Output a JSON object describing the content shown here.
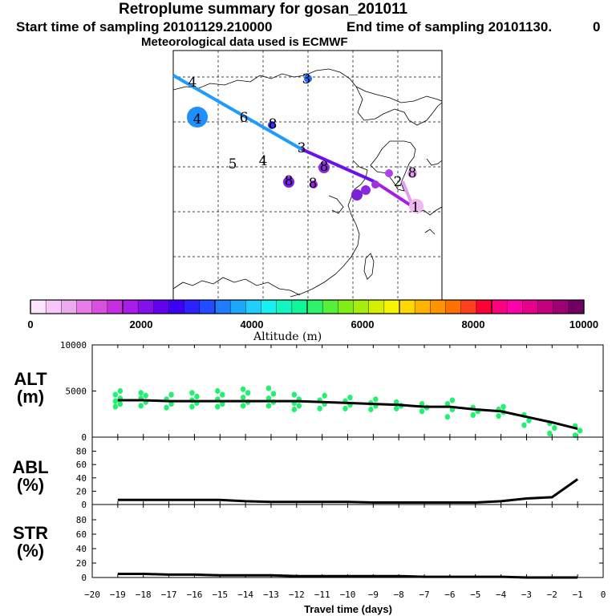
{
  "header": {
    "title": "Retroplume summary for gosan_201011",
    "start": "Start time of sampling 20101129.210000",
    "end": "End time of sampling 20101130.",
    "end_suffix": "0",
    "met": "Meteorological data used is ECMWF"
  },
  "colorbar": {
    "colors": [
      "#ffe6ff",
      "#f7c8f7",
      "#eeaaf0",
      "#e67de9",
      "#d94fe0",
      "#c52ee0",
      "#a81be8",
      "#8510ec",
      "#6000ef",
      "#3c00f2",
      "#2a23ff",
      "#1f4dff",
      "#1e7cff",
      "#1ea6ff",
      "#1ecfff",
      "#18f0f0",
      "#14f5c0",
      "#10f595",
      "#2ef36a",
      "#55f03c",
      "#80ec18",
      "#a8ec0a",
      "#d2f000",
      "#f7f400",
      "#ffd800",
      "#ffb400",
      "#ff9400",
      "#ff7000",
      "#ff4020",
      "#ff0033",
      "#ff0080",
      "#ff00aa",
      "#e6008c",
      "#c4007c",
      "#9e0078",
      "#700060"
    ],
    "ticks": [
      "0",
      "2000",
      "4000",
      "6000",
      "8000",
      "10000"
    ],
    "label": "Altitude (m)"
  },
  "map_labels": [
    {
      "t": "4",
      "c": "#000000"
    },
    {
      "t": "3",
      "c": "#1a3cff"
    },
    {
      "t": "4",
      "c": "#1a8cff"
    },
    {
      "t": "6",
      "c": "#000000"
    },
    {
      "t": "8",
      "c": "#3c2dff"
    },
    {
      "t": "3",
      "c": "#000000"
    },
    {
      "t": "5",
      "c": "#1a3cff"
    },
    {
      "t": "4",
      "c": "#3c2dff"
    },
    {
      "t": "8",
      "c": "#8a2be2"
    },
    {
      "t": "8",
      "c": "#8a2be2"
    },
    {
      "t": "8",
      "c": "#c62ee8"
    },
    {
      "t": "2",
      "c": "#000000"
    },
    {
      "t": "8",
      "c": "#e6a0f0"
    },
    {
      "t": "1",
      "c": "#000000"
    }
  ],
  "chart_data": [
    {
      "type": "line",
      "name": "ALT",
      "ylabel_line1": "ALT",
      "ylabel_line2": "(m)",
      "xlim": [
        -20,
        0
      ],
      "ylim": [
        0,
        10000
      ],
      "yticks": [
        "0",
        "5000",
        "10000"
      ],
      "x": [
        -19,
        -18,
        -17,
        -16,
        -15,
        -14,
        -13,
        -12,
        -11,
        -10,
        -9,
        -8,
        -7,
        -6,
        -5,
        -4,
        -3,
        -2,
        -1
      ],
      "series": [
        {
          "name": "median altitude",
          "values": [
            4000,
            4000,
            3900,
            3900,
            3900,
            3900,
            3900,
            3900,
            3800,
            3700,
            3600,
            3500,
            3300,
            3300,
            3000,
            2800,
            2200,
            1600,
            900
          ]
        }
      ],
      "scatter": [
        {
          "x": -19,
          "ys": [
            3300,
            3600,
            3900,
            4200,
            4600,
            5000
          ]
        },
        {
          "x": -18,
          "ys": [
            3400,
            3800,
            4200,
            4500,
            4800
          ]
        },
        {
          "x": -17,
          "ys": [
            3200,
            3600,
            4100,
            4600
          ]
        },
        {
          "x": -16,
          "ys": [
            3300,
            3700,
            4000,
            4400,
            4800
          ]
        },
        {
          "x": -15,
          "ys": [
            3300,
            3600,
            4100,
            4600,
            5000
          ]
        },
        {
          "x": -14,
          "ys": [
            3400,
            3800,
            4300,
            4800,
            5200
          ]
        },
        {
          "x": -13,
          "ys": [
            3400,
            3800,
            4200,
            4700,
            5300
          ]
        },
        {
          "x": -12,
          "ys": [
            3000,
            3400,
            3700,
            4100,
            4600
          ]
        },
        {
          "x": -11,
          "ys": [
            3100,
            3600,
            4000,
            4500
          ]
        },
        {
          "x": -10,
          "ys": [
            3100,
            3500,
            3900,
            4300
          ]
        },
        {
          "x": -9,
          "ys": [
            3000,
            3400,
            3700,
            4100
          ]
        },
        {
          "x": -8,
          "ys": [
            3100,
            3400,
            3800
          ]
        },
        {
          "x": -7,
          "ys": [
            2800,
            3200,
            3600
          ]
        },
        {
          "x": -6,
          "ys": [
            2200,
            3000,
            3600,
            4000
          ]
        },
        {
          "x": -5,
          "ys": [
            2400,
            2800,
            3200
          ]
        },
        {
          "x": -4,
          "ys": [
            2300,
            2700,
            3000,
            3300
          ]
        },
        {
          "x": -3,
          "ys": [
            1300,
            1800,
            2400
          ]
        },
        {
          "x": -2,
          "ys": [
            400,
            1000,
            1500
          ]
        },
        {
          "x": -1,
          "ys": [
            200,
            700,
            1200
          ]
        }
      ]
    },
    {
      "type": "line",
      "name": "ABL",
      "ylabel_line1": "ABL",
      "ylabel_line2": "(%)",
      "xlim": [
        -20,
        0
      ],
      "ylim": [
        0,
        100
      ],
      "yticks": [
        "0",
        "20",
        "40",
        "60",
        "80"
      ],
      "x": [
        -19,
        -18,
        -17,
        -16,
        -15,
        -14,
        -13,
        -12,
        -11,
        -10,
        -9,
        -8,
        -7,
        -6,
        -5,
        -4,
        -3,
        -2,
        -1
      ],
      "series": [
        {
          "name": "fraction in ABL",
          "values": [
            7,
            7,
            7,
            7,
            7,
            5,
            4,
            4,
            4,
            4,
            3,
            3,
            3,
            3,
            3,
            5,
            9,
            11,
            38
          ]
        }
      ]
    },
    {
      "type": "line",
      "name": "STR",
      "ylabel_line1": "STR",
      "ylabel_line2": "(%)",
      "xlim": [
        -20,
        0
      ],
      "ylim": [
        0,
        100
      ],
      "yticks": [
        "0",
        "20",
        "40",
        "60",
        "80"
      ],
      "xticks": [
        "−20",
        "−19",
        "−18",
        "−17",
        "−16",
        "−15",
        "−14",
        "−13",
        "−12",
        "−11",
        "−10",
        "−9",
        "−8",
        "−7",
        "−6",
        "−5",
        "−4",
        "−3",
        "−2",
        "−1",
        "0"
      ],
      "xlabel": "Travel time (days)",
      "x": [
        -19,
        -18,
        -17,
        -16,
        -15,
        -14,
        -13,
        -12,
        -11,
        -10,
        -9,
        -8,
        -7,
        -6,
        -5,
        -4,
        -3,
        -2,
        -1
      ],
      "series": [
        {
          "name": "fraction in stratosphere",
          "values": [
            5,
            5,
            4,
            4,
            3,
            3,
            3,
            2,
            2,
            2,
            2,
            2,
            1,
            1,
            1,
            1,
            0,
            0,
            0
          ]
        }
      ]
    }
  ]
}
